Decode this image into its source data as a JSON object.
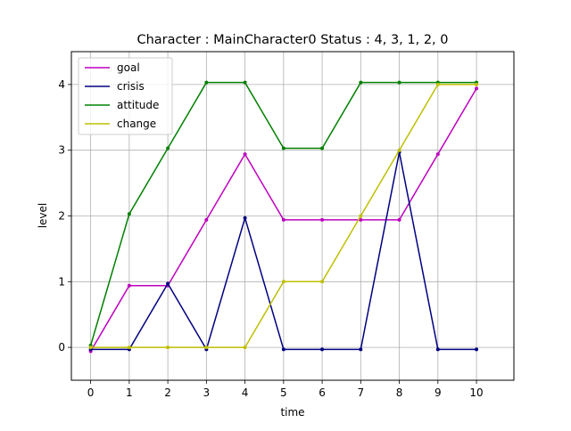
{
  "chart_data": {
    "type": "line",
    "title": "Character : MainCharacter0 Status : 4, 3, 1, 2, 0",
    "xlabel": "time",
    "ylabel": "level",
    "x": [
      0,
      1,
      2,
      3,
      4,
      5,
      6,
      7,
      8,
      9,
      10
    ],
    "xlim": [
      -0.5,
      10.97
    ],
    "ylim": [
      -0.5,
      4.5
    ],
    "xticks": [
      0,
      1,
      2,
      3,
      4,
      5,
      6,
      7,
      8,
      9,
      10
    ],
    "yticks": [
      0,
      1,
      2,
      3,
      4
    ],
    "grid": true,
    "legend_position": "top-left",
    "series": [
      {
        "name": "goal",
        "color": "#bf00bf",
        "values": [
          -0.06,
          0.94,
          0.94,
          1.94,
          2.94,
          1.94,
          1.94,
          1.94,
          1.94,
          2.94,
          3.94
        ]
      },
      {
        "name": "crisis",
        "color": "#000080",
        "values": [
          -0.03,
          -0.03,
          0.97,
          -0.03,
          1.97,
          -0.03,
          -0.03,
          -0.03,
          2.97,
          -0.03,
          -0.03
        ]
      },
      {
        "name": "attitude",
        "color": "#008000",
        "values": [
          0.03,
          2.03,
          3.03,
          4.03,
          4.03,
          3.03,
          3.03,
          4.03,
          4.03,
          4.03,
          4.03
        ]
      },
      {
        "name": "change",
        "color": "#bfbf00",
        "values": [
          0,
          0,
          0,
          0,
          0,
          1,
          1,
          2,
          3,
          4,
          4
        ]
      }
    ]
  }
}
